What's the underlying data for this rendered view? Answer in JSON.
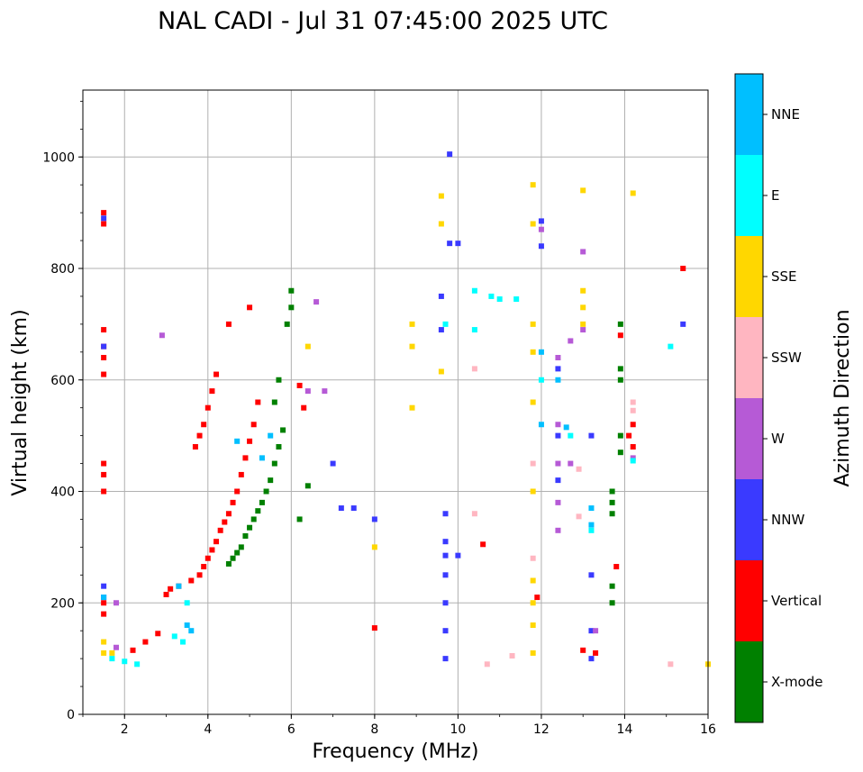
{
  "chart_data": {
    "type": "scatter",
    "title": "NAL CADI - Jul 31 07:45:00 2025 UTC",
    "xlabel": "Frequency (MHz)",
    "ylabel": "Virtual height (km)",
    "xlim": [
      1,
      16
    ],
    "ylim": [
      0,
      1120
    ],
    "xticks": [
      "2",
      "4",
      "6",
      "8",
      "10",
      "12",
      "14",
      "16"
    ],
    "yticks": [
      "0",
      "200",
      "400",
      "600",
      "800",
      "1000"
    ],
    "grid": true,
    "colorbar": {
      "label": "Azimuth Direction",
      "categories": [
        {
          "name": "X-mode",
          "color": "#008000"
        },
        {
          "name": "Vertical",
          "color": "#ff0000"
        },
        {
          "name": "NNW",
          "color": "#3a3aff"
        },
        {
          "name": "W",
          "color": "#b65ad6"
        },
        {
          "name": "SSW",
          "color": "#ffb6c1"
        },
        {
          "name": "SSE",
          "color": "#ffd700"
        },
        {
          "name": "E",
          "color": "#00ffff"
        },
        {
          "name": "NNE",
          "color": "#00bfff"
        }
      ]
    },
    "series": [
      {
        "name": "X-mode",
        "points": [
          [
            4.5,
            270
          ],
          [
            4.6,
            280
          ],
          [
            4.7,
            290
          ],
          [
            4.8,
            300
          ],
          [
            4.9,
            320
          ],
          [
            5.0,
            335
          ],
          [
            5.1,
            350
          ],
          [
            5.2,
            365
          ],
          [
            5.3,
            380
          ],
          [
            5.4,
            400
          ],
          [
            5.5,
            420
          ],
          [
            5.6,
            450
          ],
          [
            5.7,
            480
          ],
          [
            5.8,
            510
          ],
          [
            5.6,
            560
          ],
          [
            5.7,
            600
          ],
          [
            5.9,
            700
          ],
          [
            6.0,
            760
          ],
          [
            6.2,
            350
          ],
          [
            6.4,
            410
          ],
          [
            6.0,
            730
          ],
          [
            13.9,
            700
          ],
          [
            13.9,
            620
          ],
          [
            13.9,
            600
          ],
          [
            13.9,
            500
          ],
          [
            13.9,
            470
          ],
          [
            13.7,
            400
          ],
          [
            13.7,
            380
          ],
          [
            13.7,
            360
          ],
          [
            13.7,
            200
          ],
          [
            13.7,
            230
          ]
        ]
      },
      {
        "name": "Vertical",
        "points": [
          [
            1.5,
            900
          ],
          [
            1.5,
            880
          ],
          [
            1.5,
            690
          ],
          [
            1.5,
            660
          ],
          [
            1.5,
            640
          ],
          [
            1.5,
            610
          ],
          [
            1.5,
            450
          ],
          [
            1.5,
            430
          ],
          [
            1.5,
            400
          ],
          [
            1.5,
            200
          ],
          [
            1.5,
            180
          ],
          [
            2.2,
            115
          ],
          [
            2.5,
            130
          ],
          [
            2.8,
            145
          ],
          [
            3.0,
            215
          ],
          [
            3.1,
            225
          ],
          [
            3.3,
            230
          ],
          [
            3.6,
            240
          ],
          [
            3.8,
            250
          ],
          [
            3.9,
            265
          ],
          [
            4.0,
            280
          ],
          [
            4.1,
            295
          ],
          [
            4.2,
            310
          ],
          [
            4.3,
            330
          ],
          [
            4.4,
            345
          ],
          [
            4.5,
            360
          ],
          [
            4.6,
            380
          ],
          [
            4.7,
            400
          ],
          [
            4.8,
            430
          ],
          [
            4.9,
            460
          ],
          [
            5.0,
            490
          ],
          [
            5.1,
            520
          ],
          [
            5.2,
            560
          ],
          [
            4.2,
            610
          ],
          [
            4.1,
            580
          ],
          [
            4.0,
            550
          ],
          [
            3.9,
            520
          ],
          [
            3.8,
            500
          ],
          [
            3.7,
            480
          ],
          [
            4.5,
            700
          ],
          [
            5.0,
            730
          ],
          [
            6.2,
            590
          ],
          [
            6.3,
            550
          ],
          [
            8.0,
            155
          ],
          [
            10.6,
            305
          ],
          [
            11.9,
            210
          ],
          [
            13.0,
            115
          ],
          [
            13.3,
            110
          ],
          [
            13.8,
            265
          ],
          [
            13.9,
            680
          ],
          [
            14.1,
            500
          ],
          [
            14.2,
            480
          ],
          [
            14.2,
            520
          ],
          [
            15.4,
            800
          ]
        ]
      },
      {
        "name": "NNW",
        "points": [
          [
            1.5,
            210
          ],
          [
            1.5,
            230
          ],
          [
            1.5,
            660
          ],
          [
            1.5,
            890
          ],
          [
            7.0,
            450
          ],
          [
            7.2,
            370
          ],
          [
            7.5,
            370
          ],
          [
            8.0,
            350
          ],
          [
            9.7,
            100
          ],
          [
            9.7,
            150
          ],
          [
            9.7,
            200
          ],
          [
            9.7,
            250
          ],
          [
            9.7,
            285
          ],
          [
            9.7,
            310
          ],
          [
            9.7,
            360
          ],
          [
            9.8,
            1005
          ],
          [
            9.8,
            845
          ],
          [
            10.0,
            845
          ],
          [
            10.0,
            285
          ],
          [
            12.0,
            885
          ],
          [
            12.0,
            840
          ],
          [
            12.4,
            620
          ],
          [
            12.4,
            500
          ],
          [
            12.4,
            420
          ],
          [
            13.2,
            500
          ],
          [
            13.2,
            250
          ],
          [
            13.2,
            100
          ],
          [
            13.2,
            150
          ],
          [
            15.4,
            700
          ],
          [
            9.6,
            750
          ],
          [
            9.6,
            690
          ]
        ]
      },
      {
        "name": "W",
        "points": [
          [
            1.8,
            120
          ],
          [
            1.8,
            200
          ],
          [
            2.9,
            680
          ],
          [
            6.4,
            580
          ],
          [
            6.6,
            740
          ],
          [
            6.8,
            580
          ],
          [
            12.0,
            870
          ],
          [
            12.4,
            640
          ],
          [
            12.4,
            520
          ],
          [
            12.4,
            450
          ],
          [
            12.4,
            380
          ],
          [
            12.4,
            330
          ],
          [
            12.7,
            670
          ],
          [
            12.7,
            450
          ],
          [
            13.0,
            690
          ],
          [
            13.0,
            830
          ],
          [
            13.3,
            150
          ],
          [
            14.2,
            460
          ]
        ]
      },
      {
        "name": "SSW",
        "points": [
          [
            10.4,
            620
          ],
          [
            10.4,
            360
          ],
          [
            10.7,
            90
          ],
          [
            11.3,
            105
          ],
          [
            11.8,
            450
          ],
          [
            11.8,
            280
          ],
          [
            12.9,
            440
          ],
          [
            12.9,
            355
          ],
          [
            14.2,
            560
          ],
          [
            14.2,
            545
          ],
          [
            15.1,
            90
          ]
        ]
      },
      {
        "name": "SSE",
        "points": [
          [
            1.5,
            130
          ],
          [
            1.5,
            110
          ],
          [
            1.7,
            110
          ],
          [
            6.4,
            660
          ],
          [
            8.0,
            300
          ],
          [
            8.9,
            700
          ],
          [
            8.9,
            660
          ],
          [
            8.9,
            550
          ],
          [
            9.6,
            930
          ],
          [
            9.6,
            880
          ],
          [
            9.6,
            615
          ],
          [
            11.8,
            950
          ],
          [
            11.8,
            880
          ],
          [
            11.8,
            700
          ],
          [
            11.8,
            650
          ],
          [
            11.8,
            560
          ],
          [
            11.8,
            400
          ],
          [
            11.8,
            240
          ],
          [
            11.8,
            200
          ],
          [
            11.8,
            160
          ],
          [
            11.8,
            110
          ],
          [
            13.0,
            940
          ],
          [
            13.0,
            760
          ],
          [
            13.0,
            730
          ],
          [
            13.0,
            700
          ],
          [
            14.2,
            935
          ],
          [
            16.0,
            90
          ]
        ]
      },
      {
        "name": "E",
        "points": [
          [
            1.7,
            100
          ],
          [
            2.0,
            95
          ],
          [
            2.3,
            90
          ],
          [
            3.2,
            140
          ],
          [
            3.4,
            130
          ],
          [
            3.5,
            200
          ],
          [
            9.7,
            700
          ],
          [
            10.4,
            760
          ],
          [
            10.4,
            690
          ],
          [
            10.8,
            750
          ],
          [
            11.0,
            745
          ],
          [
            11.4,
            745
          ],
          [
            12.0,
            600
          ],
          [
            12.7,
            500
          ],
          [
            13.2,
            330
          ],
          [
            15.1,
            660
          ],
          [
            14.2,
            455
          ]
        ]
      },
      {
        "name": "NNE",
        "points": [
          [
            1.5,
            210
          ],
          [
            3.3,
            230
          ],
          [
            3.5,
            160
          ],
          [
            3.6,
            150
          ],
          [
            4.7,
            490
          ],
          [
            5.3,
            460
          ],
          [
            5.5,
            500
          ],
          [
            12.0,
            650
          ],
          [
            12.0,
            520
          ],
          [
            12.4,
            600
          ],
          [
            12.6,
            515
          ],
          [
            13.2,
            370
          ],
          [
            13.2,
            340
          ]
        ]
      }
    ]
  }
}
